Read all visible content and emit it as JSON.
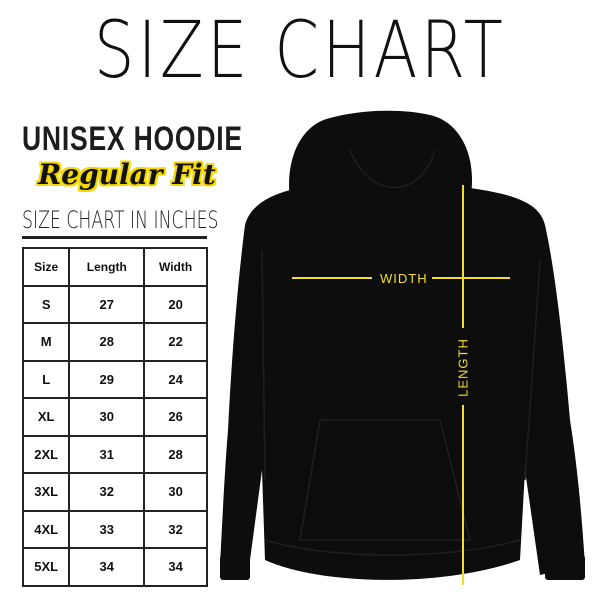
{
  "title": "SIZE CHART",
  "product": "UNISEX HOODIE",
  "fit": "Regular Fit",
  "unit_heading": "SIZE CHART IN INCHES",
  "table": {
    "headers": [
      "Size",
      "Length",
      "Width"
    ],
    "rows": [
      [
        "S",
        "27",
        "20"
      ],
      [
        "M",
        "28",
        "22"
      ],
      [
        "L",
        "29",
        "24"
      ],
      [
        "XL",
        "30",
        "26"
      ],
      [
        "2XL",
        "31",
        "28"
      ],
      [
        "3XL",
        "32",
        "30"
      ],
      [
        "4XL",
        "33",
        "32"
      ],
      [
        "5XL",
        "34",
        "34"
      ]
    ]
  },
  "diagram": {
    "width_label": "WIDTH",
    "length_label": "LENGTH",
    "measure_color": "#f2dd2a",
    "garment_color": "#0d0d0d"
  }
}
